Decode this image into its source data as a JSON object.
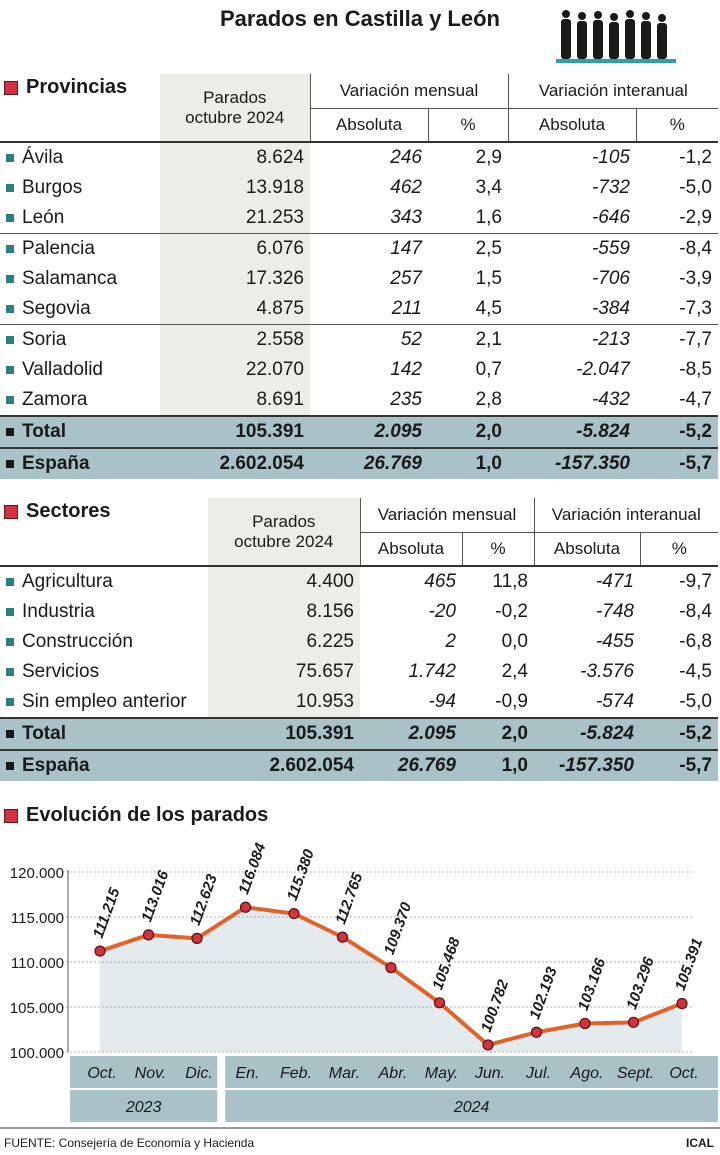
{
  "title": "Parados en Castilla y León",
  "provincias": {
    "heading": "Provincias",
    "col_parados": [
      "Parados",
      "octubre 2024"
    ],
    "col_mensual": "Variación mensual",
    "col_interanual": "Variación interanual",
    "sub_abs": "Absoluta",
    "sub_pct": "%",
    "rows": [
      {
        "name": "Ávila",
        "parados": "8.624",
        "m_abs": "246",
        "m_pct": "2,9",
        "i_abs": "-105",
        "i_pct": "-1,2"
      },
      {
        "name": "Burgos",
        "parados": "13.918",
        "m_abs": "462",
        "m_pct": "3,4",
        "i_abs": "-732",
        "i_pct": "-5,0"
      },
      {
        "name": "León",
        "parados": "21.253",
        "m_abs": "343",
        "m_pct": "1,6",
        "i_abs": "-646",
        "i_pct": "-2,9"
      },
      {
        "name": "Palencia",
        "parados": "6.076",
        "m_abs": "147",
        "m_pct": "2,5",
        "i_abs": "-559",
        "i_pct": "-8,4"
      },
      {
        "name": "Salamanca",
        "parados": "17.326",
        "m_abs": "257",
        "m_pct": "1,5",
        "i_abs": "-706",
        "i_pct": "-3,9"
      },
      {
        "name": "Segovia",
        "parados": "4.875",
        "m_abs": "211",
        "m_pct": "4,5",
        "i_abs": "-384",
        "i_pct": "-7,3"
      },
      {
        "name": "Soria",
        "parados": "2.558",
        "m_abs": "52",
        "m_pct": "2,1",
        "i_abs": "-213",
        "i_pct": "-7,7"
      },
      {
        "name": "Valladolid",
        "parados": "22.070",
        "m_abs": "142",
        "m_pct": "0,7",
        "i_abs": "-2.047",
        "i_pct": "-8,5"
      },
      {
        "name": "Zamora",
        "parados": "8.691",
        "m_abs": "235",
        "m_pct": "2,8",
        "i_abs": "-432",
        "i_pct": "-4,7"
      }
    ],
    "total": {
      "name": "Total",
      "parados": "105.391",
      "m_abs": "2.095",
      "m_pct": "2,0",
      "i_abs": "-5.824",
      "i_pct": "-5,2"
    },
    "espana": {
      "name": "España",
      "parados": "2.602.054",
      "m_abs": "26.769",
      "m_pct": "1,0",
      "i_abs": "-157.350",
      "i_pct": "-5,7"
    }
  },
  "sectores": {
    "heading": "Sectores",
    "rows": [
      {
        "name": "Agricultura",
        "parados": "4.400",
        "m_abs": "465",
        "m_pct": "11,8",
        "i_abs": "-471",
        "i_pct": "-9,7"
      },
      {
        "name": "Industria",
        "parados": "8.156",
        "m_abs": "-20",
        "m_pct": "-0,2",
        "i_abs": "-748",
        "i_pct": "-8,4"
      },
      {
        "name": "Construcción",
        "parados": "6.225",
        "m_abs": "2",
        "m_pct": "0,0",
        "i_abs": "-455",
        "i_pct": "-6,8"
      },
      {
        "name": "Servicios",
        "parados": "75.657",
        "m_abs": "1.742",
        "m_pct": "2,4",
        "i_abs": "-3.576",
        "i_pct": "-4,5"
      },
      {
        "name": "Sin empleo anterior",
        "parados": "10.953",
        "m_abs": "-94",
        "m_pct": "-0,9",
        "i_abs": "-574",
        "i_pct": "-5,0"
      }
    ],
    "total": {
      "name": "Total",
      "parados": "105.391",
      "m_abs": "2.095",
      "m_pct": "2,0",
      "i_abs": "-5.824",
      "i_pct": "-5,2"
    },
    "espana": {
      "name": "España",
      "parados": "2.602.054",
      "m_abs": "26.769",
      "m_pct": "1,0",
      "i_abs": "-157.350",
      "i_pct": "-5,7"
    }
  },
  "chart_heading": "Evolución de los parados",
  "chart_data": {
    "type": "line",
    "categories": [
      "Oct.",
      "Nov.",
      "Dic.",
      "En.",
      "Feb.",
      "Mar.",
      "Abr.",
      "May.",
      "Jun.",
      "Jul.",
      "Ago.",
      "Sept.",
      "Oct."
    ],
    "values": [
      111215,
      113016,
      112623,
      116084,
      115380,
      112765,
      109370,
      105468,
      100782,
      102193,
      103166,
      103296,
      105391
    ],
    "value_labels": [
      "111.215",
      "113.016",
      "112.623",
      "116.084",
      "115.380",
      "112.765",
      "109.370",
      "105.468",
      "100.782",
      "102.193",
      "103.166",
      "103.296",
      "105.391"
    ],
    "yticks": [
      "120.000",
      "115.000",
      "110.000",
      "105.000",
      "100.000"
    ],
    "ytick_values": [
      120000,
      115000,
      110000,
      105000,
      100000
    ],
    "ylim": [
      100000,
      120000
    ],
    "years": [
      {
        "label": "2023",
        "start": 0,
        "end": 2
      },
      {
        "label": "2024",
        "start": 3,
        "end": 12
      }
    ],
    "line_color": "#e0632a",
    "marker_color": "#d2343f",
    "fill_color": "#e4ebee"
  },
  "footer": "FUENTE: Consejería de Economía y Hacienda",
  "credit": "ICAL"
}
